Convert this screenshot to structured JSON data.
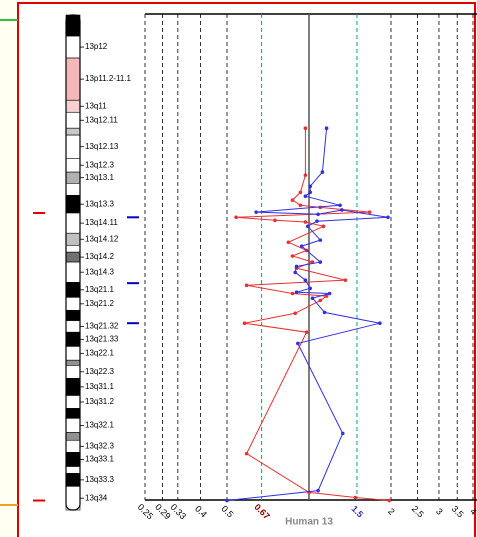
{
  "chart_data": {
    "type": "line",
    "title": "Human 13",
    "xscale": "log2",
    "xlim": [
      0.25,
      4
    ],
    "xticks": [
      0.25,
      0.29,
      0.33,
      0.4,
      0.5,
      2,
      2.5,
      3,
      3.5,
      4
    ],
    "reference_line": 1,
    "thresholds": [
      0.67,
      1.5
    ],
    "threshold_color": "#00a0a0",
    "threshold_label_colors": [
      "#8b0000",
      "#3333aa"
    ],
    "grid": true,
    "ylim": [
      0,
      115
    ],
    "bands": [
      {
        "label": null,
        "start": 0,
        "end": 4.9,
        "stain": "#000000"
      },
      {
        "label": "13p12",
        "start": 4.9,
        "end": 10.0,
        "stain": "#ffffff"
      },
      {
        "label": "13p11.2-11.1",
        "start": 10.0,
        "end": 19.8,
        "stain": "#f4b8b8"
      },
      {
        "label": "13q11",
        "start": 19.8,
        "end": 22.6,
        "stain": "#f4d0d0"
      },
      {
        "label": "13q12.11",
        "start": 22.6,
        "end": 26.3,
        "stain": "#ffffff"
      },
      {
        "label": null,
        "start": 26.3,
        "end": 27.9,
        "stain": "#c8c8c8"
      },
      {
        "label": "13q12.13",
        "start": 27.9,
        "end": 33.3,
        "stain": "#ffffff"
      },
      {
        "label": "13q12.3",
        "start": 33.3,
        "end": 36.5,
        "stain": "#ffffff"
      },
      {
        "label": "13q13.1",
        "start": 36.5,
        "end": 39.1,
        "stain": "#b0b0b0"
      },
      {
        "label": null,
        "start": 39.1,
        "end": 41.9,
        "stain": "#ffffff"
      },
      {
        "label": "13q13.3",
        "start": 41.9,
        "end": 46.0,
        "stain": "#000000"
      },
      {
        "label": "13q14.11",
        "start": 46.0,
        "end": 50.7,
        "stain": "#ffffff"
      },
      {
        "label": "13q14.12",
        "start": 50.7,
        "end": 53.5,
        "stain": "#c0c0c0"
      },
      {
        "label": null,
        "start": 53.5,
        "end": 55.1,
        "stain": "#ffffff"
      },
      {
        "label": "13q14.2",
        "start": 55.1,
        "end": 57.4,
        "stain": "#707070"
      },
      {
        "label": "13q14.3",
        "start": 57.4,
        "end": 62.1,
        "stain": "#ffffff"
      },
      {
        "label": "13q21.1",
        "start": 62.1,
        "end": 65.6,
        "stain": "#000000"
      },
      {
        "label": "13q21.2",
        "start": 65.6,
        "end": 68.6,
        "stain": "#ffffff"
      },
      {
        "label": null,
        "start": 68.6,
        "end": 71.0,
        "stain": "#000000"
      },
      {
        "label": "13q21.32",
        "start": 71.0,
        "end": 73.7,
        "stain": "#ffffff"
      },
      {
        "label": "13q21.33",
        "start": 73.7,
        "end": 77.0,
        "stain": "#000000"
      },
      {
        "label": "13q22.1",
        "start": 77.0,
        "end": 80.2,
        "stain": "#ffffff"
      },
      {
        "label": null,
        "start": 80.2,
        "end": 81.4,
        "stain": "#909090"
      },
      {
        "label": "13q22.3",
        "start": 81.4,
        "end": 84.4,
        "stain": "#ffffff"
      },
      {
        "label": "13q31.1",
        "start": 84.4,
        "end": 88.4,
        "stain": "#000000"
      },
      {
        "label": "13q31.2",
        "start": 88.4,
        "end": 91.4,
        "stain": "#ffffff"
      },
      {
        "label": null,
        "start": 91.4,
        "end": 93.7,
        "stain": "#000000"
      },
      {
        "label": "13q32.1",
        "start": 93.7,
        "end": 97.0,
        "stain": "#ffffff"
      },
      {
        "label": null,
        "start": 97.0,
        "end": 98.8,
        "stain": "#909090"
      },
      {
        "label": "13q32.3",
        "start": 98.8,
        "end": 101.6,
        "stain": "#ffffff"
      },
      {
        "label": "13q33.1",
        "start": 101.6,
        "end": 104.9,
        "stain": "#000000"
      },
      {
        "label": null,
        "start": 104.9,
        "end": 106.5,
        "stain": "#ffffff"
      },
      {
        "label": "13q33.3",
        "start": 106.5,
        "end": 109.5,
        "stain": "#000000"
      },
      {
        "label": "13q34",
        "start": 109.5,
        "end": 115,
        "stain": "#ffffff"
      }
    ],
    "series": [
      {
        "color": "#e83030",
        "positions": [
          26.3,
          37.2,
          41.2,
          43.0,
          44.2,
          44.7,
          45.8,
          47.0,
          47.7,
          48.1,
          49.1,
          52.8,
          54.7,
          56.0,
          57.4,
          58.8,
          61.6,
          62.8,
          64.7,
          65.3,
          66.3,
          69.3,
          71.6,
          73.7,
          101.9,
          110.9,
          112.1,
          112.8
        ],
        "values": [
          0.97,
          0.97,
          0.93,
          0.87,
          0.93,
          1.1,
          1.67,
          0.54,
          0.75,
          0.97,
          1.13,
          0.84,
          0.98,
          0.87,
          1.03,
          0.9,
          1.36,
          0.59,
          0.87,
          1.16,
          1.1,
          0.89,
          0.58,
          0.98,
          0.59,
          1,
          1.48,
          1.97
        ]
      },
      {
        "color": "#3030e0",
        "positions": [
          26.3,
          36.5,
          39.8,
          41.2,
          42.1,
          44.2,
          45.8,
          46.3,
          45.3,
          47.0,
          47.9,
          49.1,
          52.3,
          53.7,
          57.4,
          58.4,
          59.8,
          61.6,
          63.5,
          64.4,
          64.7,
          65.8,
          69.1,
          71.6,
          76.3,
          97.2,
          110.5,
          112.8
        ],
        "values": [
          1.16,
          1.12,
          1.01,
          1.01,
          0.97,
          1.3,
          0.64,
          1.08,
          1.32,
          1.95,
          1.07,
          0.99,
          1.1,
          0.94,
          1.1,
          0.9,
          0.89,
          0.97,
          1.01,
          0.9,
          1.19,
          1.03,
          1.14,
          1.82,
          0.91,
          1.33,
          1.08,
          0.5
        ]
      }
    ],
    "markers": [
      {
        "color": "#e00000",
        "side": "left",
        "positions": [
          46.0,
          112.8
        ]
      },
      {
        "color": "#0000c0",
        "side": "right",
        "positions": [
          47.0,
          62.3,
          71.6
        ]
      }
    ]
  }
}
